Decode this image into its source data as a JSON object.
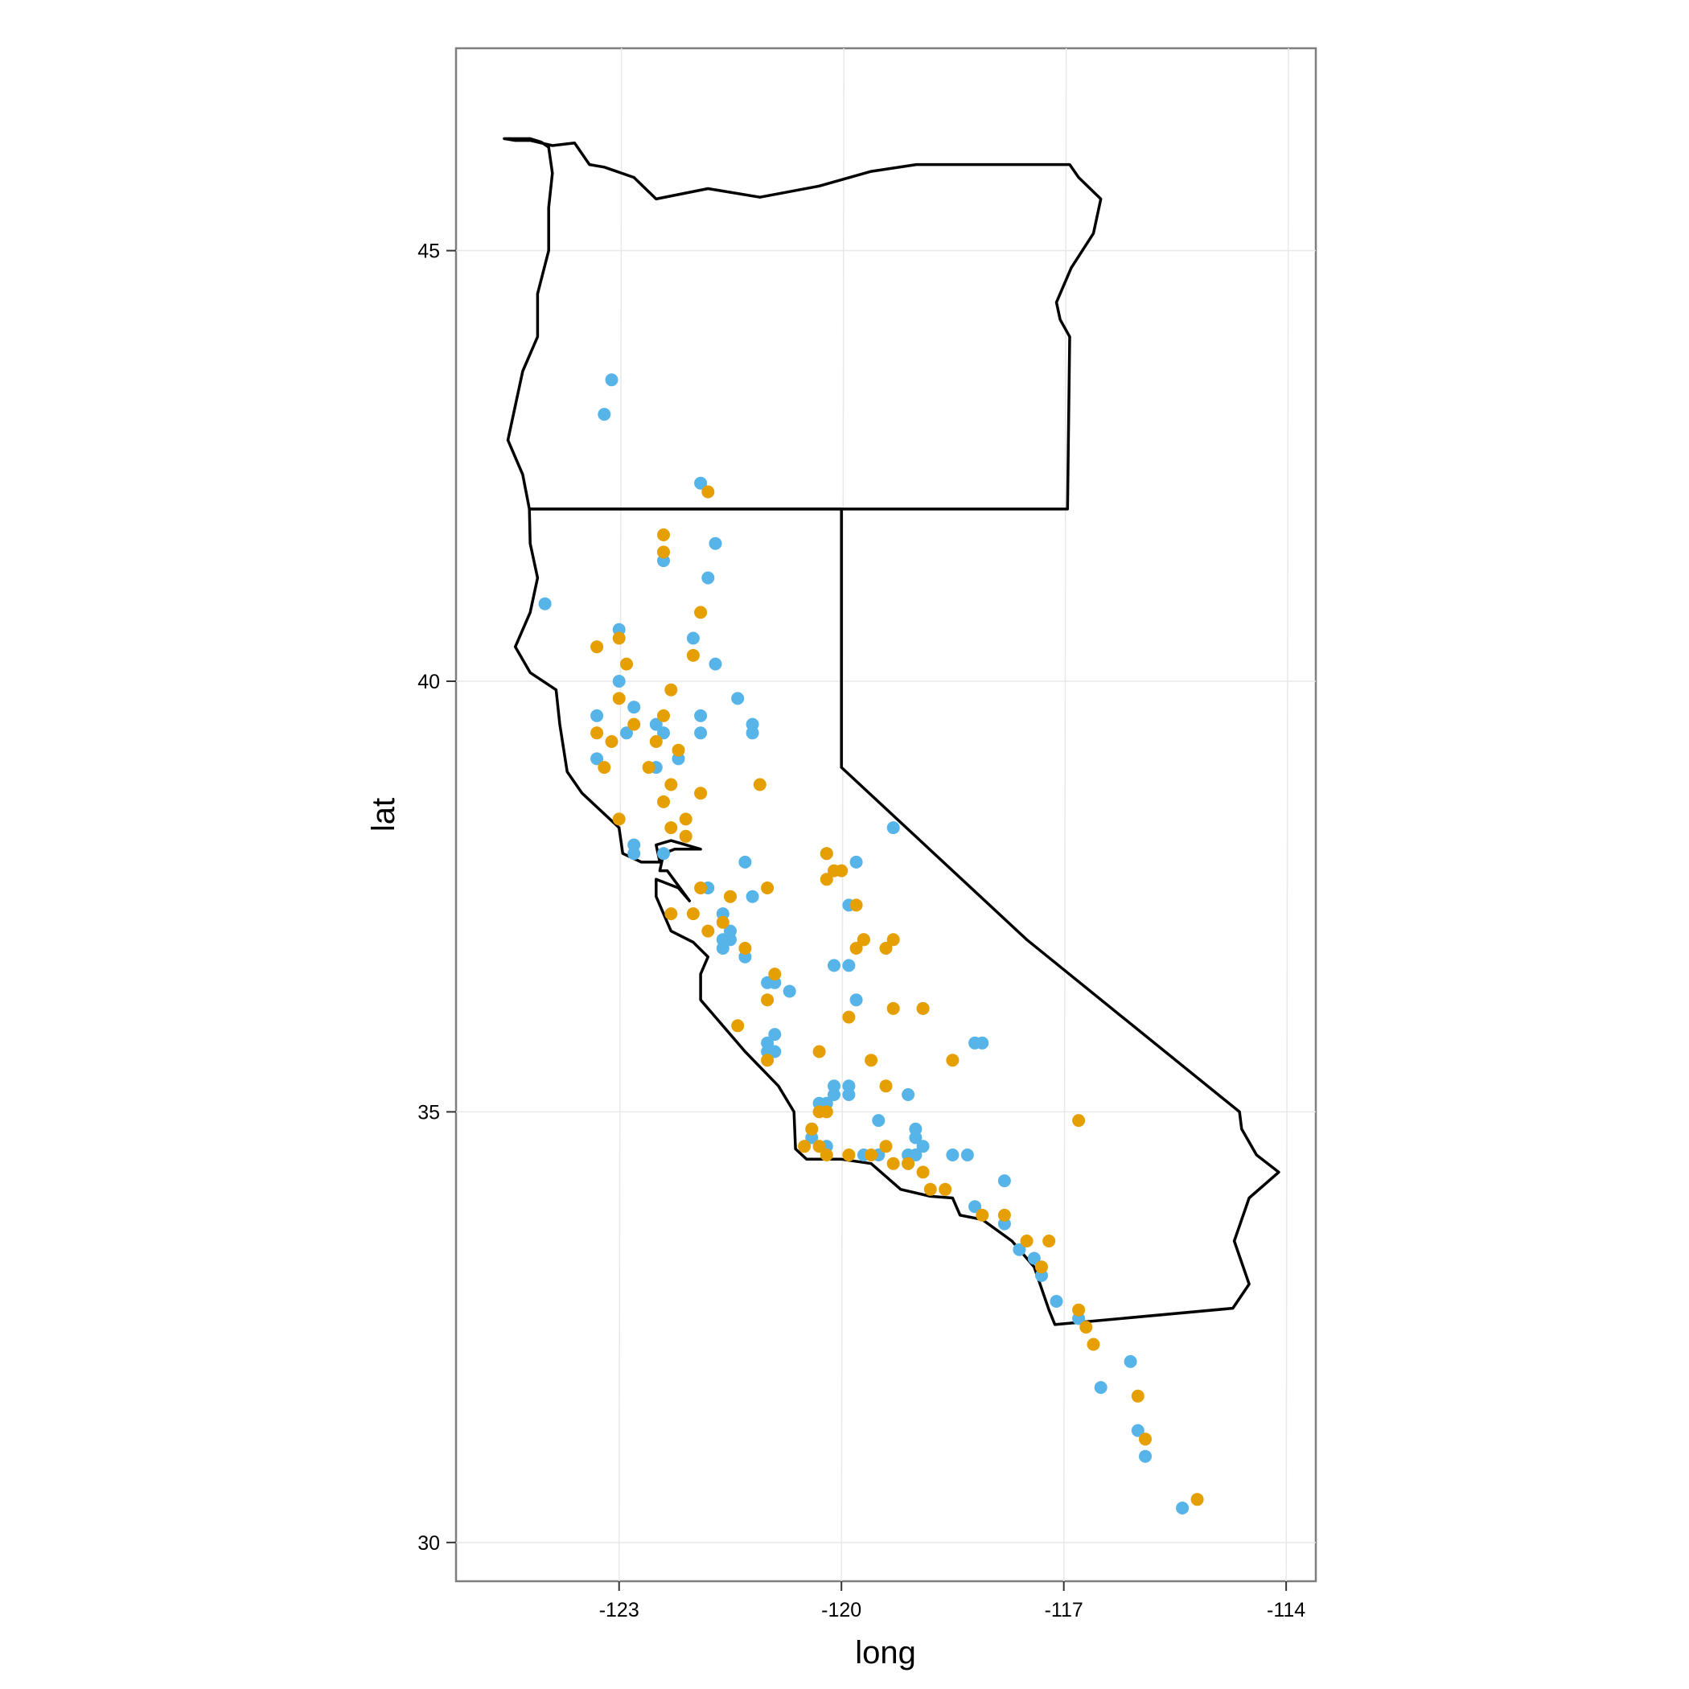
{
  "chart_data": {
    "type": "scatter",
    "title": "",
    "xlabel": "long",
    "ylabel": "lat",
    "xlim": [
      -125.2,
      -113.6
    ],
    "ylim": [
      29.55,
      47.35
    ],
    "x_ticks": [
      "-123",
      "-120",
      "-117",
      "-114"
    ],
    "x_tick_values": [
      -123,
      -120,
      -117,
      -114
    ],
    "y_ticks": [
      "30",
      "35",
      "40",
      "45"
    ],
    "y_tick_values": [
      30,
      35,
      40,
      45
    ],
    "grid": true,
    "legend": "none",
    "colors": {
      "blue": "#56b4e9",
      "orange": "#e69f00",
      "outline": "#000000"
    },
    "map_regions": [
      "Oregon",
      "California"
    ],
    "series": [
      {
        "color": "#56b4e9",
        "points": [
          [
            -123.1,
            43.5
          ],
          [
            -123.2,
            43.1
          ],
          [
            -121.9,
            42.3
          ],
          [
            -121.7,
            41.6
          ],
          [
            -122.4,
            41.4
          ],
          [
            -121.8,
            41.2
          ],
          [
            -124.0,
            40.9
          ],
          [
            -123.0,
            40.6
          ],
          [
            -122.0,
            40.5
          ],
          [
            -121.7,
            40.2
          ],
          [
            -123.0,
            40.0
          ],
          [
            -121.4,
            39.8
          ],
          [
            -123.3,
            39.6
          ],
          [
            -122.8,
            39.7
          ],
          [
            -121.9,
            39.6
          ],
          [
            -122.5,
            39.5
          ],
          [
            -121.2,
            39.5
          ],
          [
            -122.9,
            39.4
          ],
          [
            -122.4,
            39.4
          ],
          [
            -121.9,
            39.4
          ],
          [
            -121.2,
            39.4
          ],
          [
            -122.2,
            39.1
          ],
          [
            -123.3,
            39.1
          ],
          [
            -122.5,
            39.0
          ],
          [
            -119.3,
            38.3
          ],
          [
            -122.8,
            38.1
          ],
          [
            -122.8,
            38.0
          ],
          [
            -122.4,
            38.0
          ],
          [
            -120.2,
            38.0
          ],
          [
            -119.8,
            37.9
          ],
          [
            -121.3,
            37.9
          ],
          [
            -121.8,
            37.6
          ],
          [
            -121.2,
            37.5
          ],
          [
            -119.9,
            37.4
          ],
          [
            -121.6,
            37.3
          ],
          [
            -121.5,
            37.1
          ],
          [
            -121.6,
            37.0
          ],
          [
            -121.5,
            37.0
          ],
          [
            -121.6,
            36.9
          ],
          [
            -121.3,
            36.8
          ],
          [
            -120.1,
            36.7
          ],
          [
            -119.9,
            36.7
          ],
          [
            -121.0,
            36.5
          ],
          [
            -120.9,
            36.5
          ],
          [
            -120.7,
            36.4
          ],
          [
            -119.8,
            36.3
          ],
          [
            -118.9,
            36.2
          ],
          [
            -120.9,
            35.9
          ],
          [
            -121.0,
            35.8
          ],
          [
            -121.0,
            35.7
          ],
          [
            -120.9,
            35.7
          ],
          [
            -118.2,
            35.8
          ],
          [
            -118.1,
            35.8
          ],
          [
            -120.1,
            35.3
          ],
          [
            -120.1,
            35.2
          ],
          [
            -119.9,
            35.3
          ],
          [
            -119.1,
            35.2
          ],
          [
            -120.2,
            35.1
          ],
          [
            -120.3,
            35.1
          ],
          [
            -119.9,
            35.2
          ],
          [
            -120.4,
            34.8
          ],
          [
            -119.5,
            34.9
          ],
          [
            -119.0,
            34.8
          ],
          [
            -119.0,
            34.7
          ],
          [
            -118.5,
            34.5
          ],
          [
            -119.5,
            34.5
          ],
          [
            -119.1,
            34.5
          ],
          [
            -119.0,
            34.5
          ],
          [
            -118.3,
            34.5
          ],
          [
            -120.4,
            34.7
          ],
          [
            -119.7,
            34.5
          ],
          [
            -120.2,
            34.6
          ],
          [
            -119.1,
            34.4
          ],
          [
            -118.9,
            34.6
          ],
          [
            -117.8,
            34.2
          ],
          [
            -118.2,
            33.9
          ],
          [
            -117.8,
            33.7
          ],
          [
            -117.6,
            33.4
          ],
          [
            -117.4,
            33.3
          ],
          [
            -117.3,
            33.1
          ],
          [
            -117.1,
            32.8
          ],
          [
            -116.8,
            32.6
          ],
          [
            -116.1,
            32.1
          ],
          [
            -116.5,
            31.8
          ],
          [
            -116.0,
            31.3
          ],
          [
            -115.9,
            31.0
          ],
          [
            -115.4,
            30.4
          ]
        ]
      },
      {
        "color": "#e69f00",
        "points": [
          [
            -121.8,
            42.2
          ],
          [
            -122.4,
            41.7
          ],
          [
            -122.4,
            41.5
          ],
          [
            -121.9,
            40.8
          ],
          [
            -123.0,
            40.5
          ],
          [
            -123.3,
            40.4
          ],
          [
            -122.0,
            40.3
          ],
          [
            -122.9,
            40.2
          ],
          [
            -122.3,
            39.9
          ],
          [
            -123.0,
            39.8
          ],
          [
            -122.4,
            39.6
          ],
          [
            -123.3,
            39.4
          ],
          [
            -122.8,
            39.5
          ],
          [
            -122.5,
            39.3
          ],
          [
            -123.1,
            39.3
          ],
          [
            -122.2,
            39.2
          ],
          [
            -122.6,
            39.0
          ],
          [
            -123.2,
            39.0
          ],
          [
            -122.3,
            38.8
          ],
          [
            -121.9,
            38.7
          ],
          [
            -122.4,
            38.6
          ],
          [
            -123.0,
            38.4
          ],
          [
            -122.3,
            38.3
          ],
          [
            -122.1,
            38.4
          ],
          [
            -122.1,
            38.2
          ],
          [
            -121.1,
            38.8
          ],
          [
            -120.2,
            38.0
          ],
          [
            -120.0,
            37.8
          ],
          [
            -120.1,
            37.8
          ],
          [
            -120.2,
            37.7
          ],
          [
            -119.8,
            37.4
          ],
          [
            -121.0,
            37.6
          ],
          [
            -121.5,
            37.5
          ],
          [
            -121.9,
            37.6
          ],
          [
            -122.0,
            37.3
          ],
          [
            -122.3,
            37.3
          ],
          [
            -121.6,
            37.2
          ],
          [
            -121.3,
            36.9
          ],
          [
            -121.8,
            37.1
          ],
          [
            -119.7,
            37.0
          ],
          [
            -119.7,
            37.0
          ],
          [
            -119.3,
            37.0
          ],
          [
            -119.8,
            36.9
          ],
          [
            -119.4,
            36.9
          ],
          [
            -120.9,
            36.6
          ],
          [
            -121.0,
            36.3
          ],
          [
            -119.9,
            36.1
          ],
          [
            -119.3,
            36.2
          ],
          [
            -118.9,
            36.2
          ],
          [
            -121.4,
            36.0
          ],
          [
            -120.3,
            35.7
          ],
          [
            -121.0,
            35.6
          ],
          [
            -119.6,
            35.6
          ],
          [
            -118.5,
            35.6
          ],
          [
            -119.4,
            35.3
          ],
          [
            -116.8,
            34.9
          ],
          [
            -120.2,
            35.0
          ],
          [
            -120.3,
            35.0
          ],
          [
            -120.4,
            34.8
          ],
          [
            -120.5,
            34.6
          ],
          [
            -120.3,
            34.6
          ],
          [
            -119.9,
            34.5
          ],
          [
            -119.6,
            34.5
          ],
          [
            -119.4,
            34.6
          ],
          [
            -119.3,
            34.4
          ],
          [
            -119.1,
            34.4
          ],
          [
            -118.9,
            34.3
          ],
          [
            -118.8,
            34.1
          ],
          [
            -118.6,
            34.1
          ],
          [
            -118.1,
            33.8
          ],
          [
            -117.8,
            33.8
          ],
          [
            -117.5,
            33.5
          ],
          [
            -117.3,
            33.2
          ],
          [
            -117.2,
            33.5
          ],
          [
            -116.8,
            32.7
          ],
          [
            -116.7,
            32.5
          ],
          [
            -116.6,
            32.3
          ],
          [
            -116.0,
            31.7
          ],
          [
            -115.9,
            31.2
          ],
          [
            -115.2,
            30.5
          ],
          [
            -120.2,
            34.5
          ]
        ]
      }
    ]
  }
}
